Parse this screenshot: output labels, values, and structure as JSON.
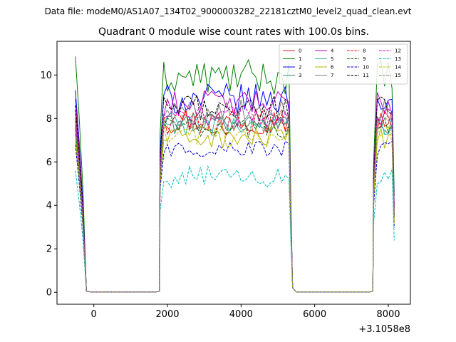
{
  "chart_data": {
    "type": "line",
    "suptitle": "Data file: modeM0/AS1A07_134T02_9000003282_22181cztM0_level2_quad_clean.evt",
    "title": "Quadrant 0 module wise count rates with 100.0s bins.",
    "xlabel": "",
    "ylabel": "",
    "x_offset_label": "+3.1058e8",
    "xlim": [
      -1000,
      8600
    ],
    "ylim": [
      -0.55,
      11.55
    ],
    "xticks": [
      0,
      2000,
      4000,
      6000,
      8000
    ],
    "yticks": [
      0,
      2,
      4,
      6,
      8,
      10
    ],
    "grid": false,
    "legend_position": "upper right",
    "legend_columns": 4,
    "segments": [
      {
        "x_start": -500,
        "x_end": -200
      },
      {
        "x_start": 1800,
        "x_end": 5300
      },
      {
        "x_start": 7600,
        "x_end": 8100
      }
    ],
    "series": [
      {
        "name": "0",
        "color": "#e41a1c",
        "dash": "solid",
        "level": 7.9,
        "start": 8.4,
        "amp": 0.6
      },
      {
        "name": "1",
        "color": "#008000",
        "dash": "solid",
        "level": 9.9,
        "start": 10.85,
        "amp": 0.8
      },
      {
        "name": "2",
        "color": "#0000ff",
        "dash": "solid",
        "level": 8.9,
        "start": 9.3,
        "amp": 0.7
      },
      {
        "name": "3",
        "color": "#2e8b8b",
        "dash": "solid",
        "level": 7.8,
        "start": 7.6,
        "amp": 0.5
      },
      {
        "name": "4",
        "color": "#c000c0",
        "dash": "solid",
        "level": 8.7,
        "start": 8.9,
        "amp": 0.6
      },
      {
        "name": "5",
        "color": "#20b2aa",
        "dash": "solid",
        "level": 7.7,
        "start": 7.3,
        "amp": 0.5
      },
      {
        "name": "6",
        "color": "#b5b500",
        "dash": "solid",
        "level": 7.1,
        "start": 7.0,
        "amp": 0.5
      },
      {
        "name": "7",
        "color": "#808080",
        "dash": "solid",
        "level": 8.4,
        "start": 8.2,
        "amp": 0.5
      },
      {
        "name": "8",
        "color": "#ff0000",
        "dash": "dashed",
        "level": 7.8,
        "start": 7.9,
        "amp": 0.6
      },
      {
        "name": "9",
        "color": "#006400",
        "dash": "dashed",
        "level": 7.6,
        "start": 7.5,
        "amp": 0.5
      },
      {
        "name": "10",
        "color": "#0000cd",
        "dash": "dashed",
        "level": 6.6,
        "start": 6.8,
        "amp": 0.4
      },
      {
        "name": "11",
        "color": "#000000",
        "dash": "dashed",
        "level": 8.5,
        "start": 8.6,
        "amp": 0.6
      },
      {
        "name": "12",
        "color": "#cc00cc",
        "dash": "dashed",
        "level": 8.1,
        "start": 8.0,
        "amp": 0.5
      },
      {
        "name": "13",
        "color": "#00bfbf",
        "dash": "dashed",
        "level": 5.3,
        "start": 5.6,
        "amp": 0.5
      },
      {
        "name": "14",
        "color": "#bdbd00",
        "dash": "dashed",
        "level": 7.2,
        "start": 7.2,
        "amp": 0.5
      },
      {
        "name": "15",
        "color": "#7f7f7f",
        "dash": "dashed",
        "level": 7.9,
        "start": 7.7,
        "amp": 0.5
      }
    ]
  }
}
